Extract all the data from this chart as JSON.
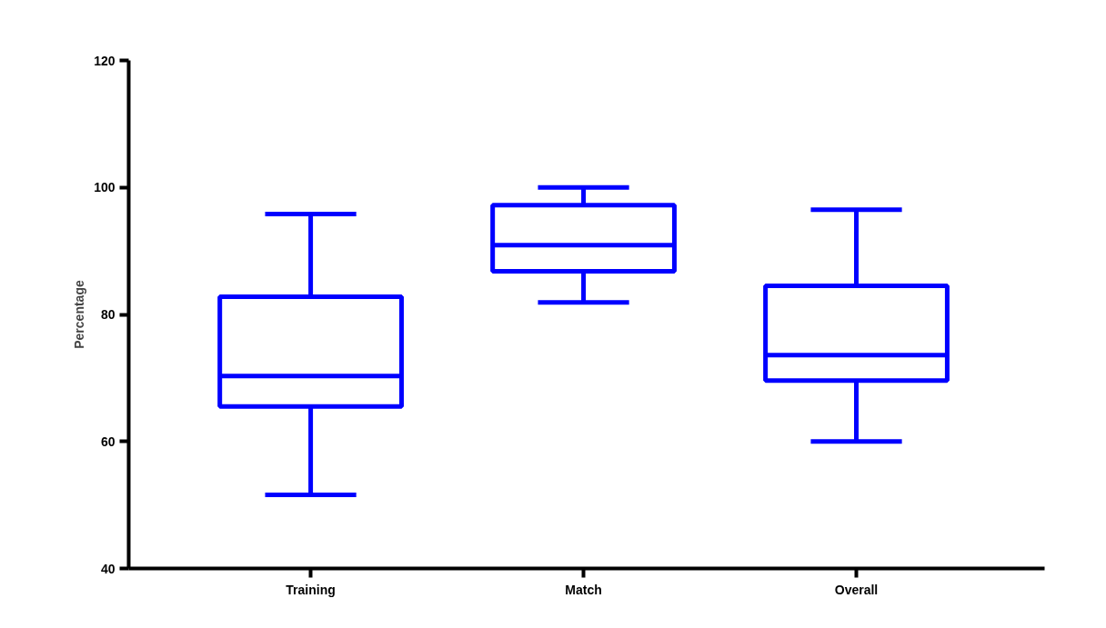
{
  "chart_data": {
    "type": "box",
    "ylabel": "Percentage",
    "categories": [
      "Training",
      "Match",
      "Overall"
    ],
    "ylim": [
      40,
      120
    ],
    "yticks": [
      40,
      60,
      80,
      100,
      120
    ],
    "series": [
      {
        "color": "#0000ff",
        "boxes": [
          {
            "low": 51.6,
            "q1": 65.5,
            "median": 70.3,
            "q3": 82.8,
            "high": 95.8
          },
          {
            "low": 81.9,
            "q1": 86.8,
            "median": 90.9,
            "q3": 97.2,
            "high": 100
          },
          {
            "low": 60,
            "q1": 69.6,
            "median": 73.6,
            "q3": 84.5,
            "high": 96.5
          }
        ]
      }
    ]
  }
}
